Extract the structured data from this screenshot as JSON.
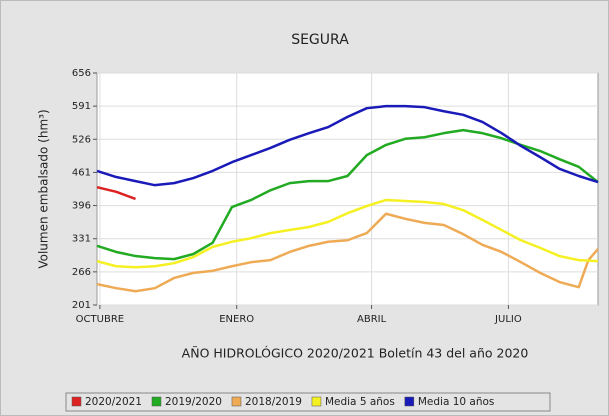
{
  "chart_data": {
    "type": "line",
    "title": "SEGURA",
    "xlabel": "AÑO HIDROLÓGICO 2020/2021 Boletín 43 del año 2020",
    "ylabel": "Volumen embalsado (hm³)",
    "x": [
      0,
      2,
      4,
      6,
      8,
      10,
      12,
      14,
      16,
      18,
      20,
      22,
      24,
      26,
      28,
      30,
      32,
      34,
      36,
      38,
      40,
      42,
      44,
      46,
      48,
      50,
      51,
      52
    ],
    "xlim": [
      0,
      52
    ],
    "xticks": [
      {
        "value": 0.3,
        "label": "OCTUBRE"
      },
      {
        "value": 14.5,
        "label": "ENERO"
      },
      {
        "value": 28.5,
        "label": "ABRIL"
      },
      {
        "value": 42.7,
        "label": "JULIO"
      }
    ],
    "ylim": [
      201,
      656
    ],
    "yticks": [
      201,
      266,
      331,
      396,
      461,
      526,
      591,
      656
    ],
    "grid": true,
    "series": [
      {
        "name": "2020/2021",
        "color": "#dd2222",
        "values": [
          432,
          423,
          409,
          null,
          null,
          null,
          null,
          null,
          null,
          null,
          null,
          null,
          null,
          null,
          null,
          null,
          null,
          null,
          null,
          null,
          null,
          null,
          null,
          null,
          null,
          null,
          null,
          null
        ]
      },
      {
        "name": "2019/2020",
        "color": "#22aa22",
        "values": [
          317,
          305,
          297,
          293,
          291,
          301,
          323,
          393,
          407,
          426,
          440,
          444,
          444,
          454,
          495,
          515,
          527,
          530,
          538,
          544,
          538,
          528,
          515,
          503,
          487,
          472,
          457,
          442
        ]
      },
      {
        "name": "2018/2019",
        "color": "#eeaa55",
        "values": [
          242,
          234,
          228,
          234,
          254,
          264,
          268,
          277,
          285,
          289,
          305,
          317,
          325,
          328,
          342,
          380,
          370,
          362,
          358,
          340,
          319,
          305,
          285,
          264,
          246,
          236,
          289,
          311
        ]
      },
      {
        "name": "Media 5 años",
        "color": "#f5f022",
        "values": [
          287,
          277,
          275,
          277,
          283,
          295,
          315,
          325,
          332,
          342,
          348,
          354,
          364,
          381,
          395,
          407,
          405,
          403,
          399,
          387,
          368,
          348,
          328,
          313,
          297,
          289,
          288,
          287
        ]
      },
      {
        "name": "Media 10 años",
        "color": "#1a1ab8",
        "values": [
          464,
          452,
          444,
          436,
          440,
          450,
          464,
          481,
          495,
          509,
          525,
          538,
          550,
          570,
          587,
          591,
          591,
          589,
          581,
          574,
          560,
          538,
          513,
          491,
          468,
          454,
          448,
          442
        ]
      }
    ]
  }
}
